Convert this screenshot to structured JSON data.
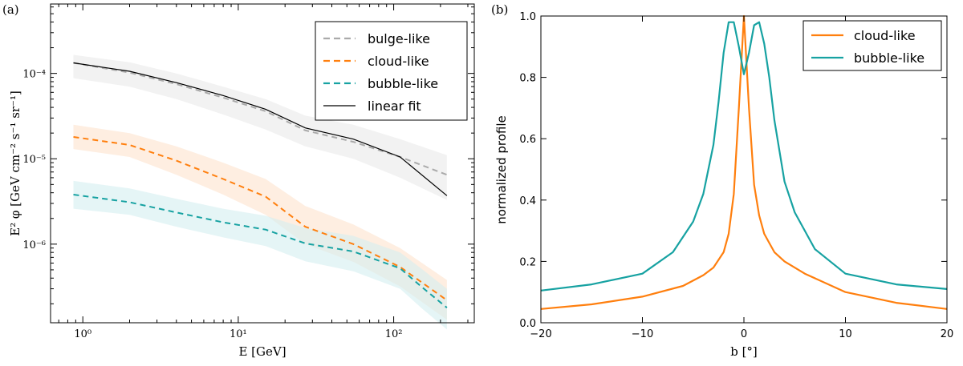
{
  "chart_data": [
    {
      "panel_label": "(a)",
      "type": "line",
      "x_scale": "log",
      "y_scale": "log",
      "xlabel": "E [GeV]",
      "ylabel": "E² φ [GeV cm⁻² s⁻¹ sr⁻¹]",
      "xlim": [
        0.62,
        330
      ],
      "ylim": [
        1.2e-07,
        0.00065
      ],
      "x_ticks": [
        {
          "value": 1,
          "label": "10⁰"
        },
        {
          "value": 10,
          "label": "10¹"
        },
        {
          "value": 100,
          "label": "10²"
        }
      ],
      "y_ticks": [
        {
          "value": 1e-06,
          "label": "10⁻⁶"
        },
        {
          "value": 1e-05,
          "label": "10⁻⁵"
        },
        {
          "value": 0.0001,
          "label": "10⁻⁴"
        }
      ],
      "legend_position": "top-right",
      "series": [
        {
          "name": "bulge-like",
          "style": "dashed",
          "color": "#aaaaaa",
          "band_color": "#e9e9e9",
          "x": [
            0.87,
            2,
            4,
            8,
            15,
            27,
            55,
            110,
            220
          ],
          "y": [
            0.000133,
            0.000102,
            7.5e-05,
            5.2e-05,
            3.6e-05,
            2.15e-05,
            1.58e-05,
            1.05e-05,
            6.5e-06
          ],
          "band_low": [
            8.8e-05,
            7e-05,
            5e-05,
            3.3e-05,
            2.2e-05,
            1.4e-05,
            1e-05,
            6e-06,
            3.3e-06
          ],
          "band_high": [
            0.000165,
            0.000135,
            0.0001,
            7e-05,
            5e-05,
            3.2e-05,
            2.5e-05,
            1.7e-05,
            1.1e-05
          ]
        },
        {
          "name": "cloud-like",
          "style": "dashed",
          "color": "#ff7f0e",
          "band_color": "#fde3cd",
          "x": [
            0.87,
            2,
            4,
            8,
            15,
            27,
            55,
            110,
            220
          ],
          "y": [
            1.8e-05,
            1.45e-05,
            9.5e-06,
            5.8e-06,
            3.6e-06,
            1.6e-06,
            1e-06,
            5.4e-07,
            2.2e-07
          ],
          "band_low": [
            1.3e-05,
            1.05e-05,
            6.5e-06,
            3.8e-06,
            2.2e-06,
            1e-06,
            6.2e-07,
            3.2e-07,
            1.3e-07
          ],
          "band_high": [
            2.5e-05,
            2e-05,
            1.4e-05,
            9e-06,
            5.8e-06,
            2.8e-06,
            1.7e-06,
            9e-07,
            3.8e-07
          ]
        },
        {
          "name": "bubble-like",
          "style": "dashed",
          "color": "#17a2a2",
          "band_color": "#d4eff0",
          "x": [
            0.87,
            2,
            4,
            8,
            15,
            27,
            55,
            110,
            150,
            220
          ],
          "y": [
            3.8e-06,
            3.1e-06,
            2.35e-06,
            1.8e-06,
            1.48e-06,
            1.02e-06,
            8.2e-07,
            5.2e-07,
            3.2e-07,
            1.8e-07
          ],
          "band_low": [
            2.6e-06,
            2.2e-06,
            1.6e-06,
            1.2e-06,
            9.5e-07,
            6.3e-07,
            4.8e-07,
            3e-07,
            1.8e-07,
            1e-07
          ],
          "band_high": [
            5.5e-06,
            4.5e-06,
            3.4e-06,
            2.6e-06,
            2.15e-06,
            1.55e-06,
            1.25e-06,
            8e-07,
            5.2e-07,
            3e-07
          ]
        },
        {
          "name": "linear fit",
          "style": "solid",
          "color": "#000000",
          "x": [
            0.87,
            2,
            4,
            8,
            15,
            27,
            55,
            110,
            220
          ],
          "y": [
            0.000133,
            0.000106,
            7.8e-05,
            5.5e-05,
            3.8e-05,
            2.3e-05,
            1.7e-05,
            1.05e-05,
            3.7e-06
          ]
        }
      ]
    },
    {
      "panel_label": "(b)",
      "type": "line",
      "xlabel": "b [°]",
      "ylabel": "normalized profile",
      "xlim": [
        -20,
        20
      ],
      "ylim": [
        0,
        1.0
      ],
      "x_ticks": [
        {
          "value": -20,
          "label": "−20"
        },
        {
          "value": -10,
          "label": "−10"
        },
        {
          "value": 0,
          "label": "0"
        },
        {
          "value": 10,
          "label": "10"
        },
        {
          "value": 20,
          "label": "20"
        }
      ],
      "y_ticks": [
        {
          "value": 0,
          "label": "0.0"
        },
        {
          "value": 0.2,
          "label": "0.2"
        },
        {
          "value": 0.4,
          "label": "0.4"
        },
        {
          "value": 0.6,
          "label": "0.6"
        },
        {
          "value": 0.8,
          "label": "0.8"
        },
        {
          "value": 1.0,
          "label": "1.0"
        }
      ],
      "legend_position": "top-right",
      "series": [
        {
          "name": "cloud-like",
          "color": "#ff7f0e",
          "x": [
            -20,
            -15,
            -10,
            -6,
            -4,
            -3,
            -2,
            -1.5,
            -1,
            -0.5,
            0,
            0.5,
            1,
            1.5,
            2,
            2.5,
            3,
            4,
            6,
            10,
            15,
            20
          ],
          "y": [
            0.045,
            0.06,
            0.085,
            0.12,
            0.155,
            0.18,
            0.23,
            0.29,
            0.42,
            0.7,
            1.0,
            0.7,
            0.45,
            0.35,
            0.29,
            0.26,
            0.23,
            0.2,
            0.16,
            0.1,
            0.065,
            0.045
          ]
        },
        {
          "name": "bubble-like",
          "color": "#17a2a2",
          "x": [
            -20,
            -15,
            -10,
            -7,
            -5,
            -4,
            -3,
            -2.5,
            -2,
            -1.5,
            -1,
            -0.5,
            0,
            0.5,
            1,
            1.5,
            2,
            2.5,
            3,
            4,
            5,
            7,
            10,
            15,
            20
          ],
          "y": [
            0.105,
            0.125,
            0.16,
            0.23,
            0.33,
            0.42,
            0.58,
            0.72,
            0.88,
            0.98,
            0.98,
            0.9,
            0.81,
            0.88,
            0.97,
            0.98,
            0.91,
            0.8,
            0.66,
            0.46,
            0.36,
            0.24,
            0.16,
            0.125,
            0.11
          ]
        }
      ]
    }
  ]
}
